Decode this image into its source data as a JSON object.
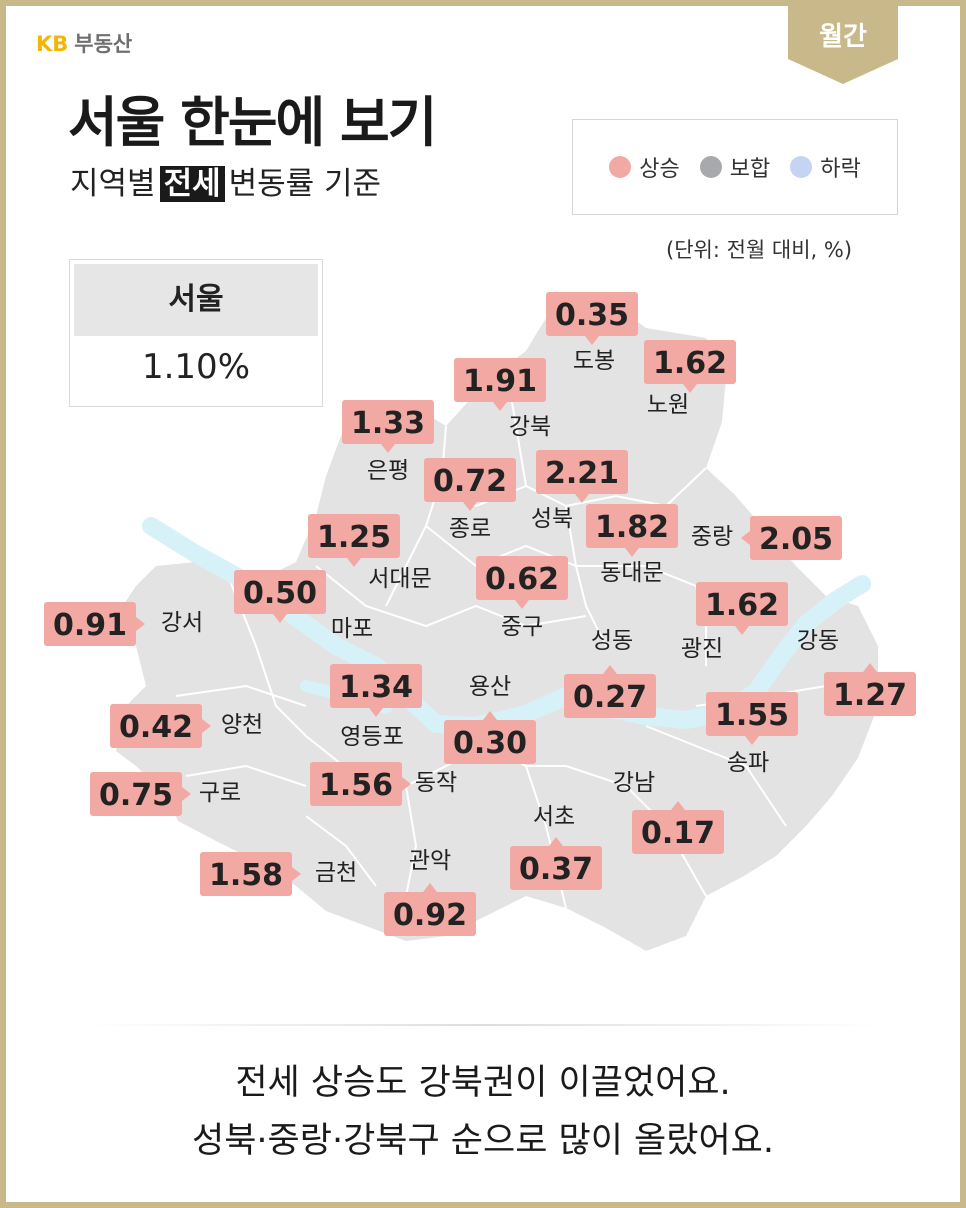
{
  "brand": {
    "kb": "KB",
    "name": "부동산"
  },
  "period": "월간",
  "title": "서울 한눈에 보기",
  "subtitle": {
    "before": "지역별",
    "highlight": "전세",
    "after": "변동률 기준"
  },
  "legend": [
    {
      "label": "상승",
      "color": "#f2a9a3"
    },
    {
      "label": "보합",
      "color": "#a7a9ac"
    },
    {
      "label": "하락",
      "color": "#c5d4f3"
    }
  ],
  "unit": "(단위: 전월 대비, %)",
  "summary": {
    "region": "서울",
    "value": "1.10%"
  },
  "colors": {
    "rise": "#f2a9a3",
    "map": "#e3e3e3",
    "river": "#d6f2f8",
    "accent": "#c9b88a"
  },
  "districts": [
    {
      "name": "도봉",
      "value": "0.35"
    },
    {
      "name": "노원",
      "value": "1.62"
    },
    {
      "name": "강북",
      "value": "1.91"
    },
    {
      "name": "은평",
      "value": "1.33"
    },
    {
      "name": "종로",
      "value": "0.72"
    },
    {
      "name": "성북",
      "value": "2.21"
    },
    {
      "name": "중랑",
      "value": "2.05"
    },
    {
      "name": "동대문",
      "value": "1.82"
    },
    {
      "name": "서대문",
      "value": "1.25"
    },
    {
      "name": "마포",
      "value": "0.50"
    },
    {
      "name": "중구",
      "value": "0.62"
    },
    {
      "name": "강서",
      "value": "0.91"
    },
    {
      "name": "광진",
      "value": "1.62"
    },
    {
      "name": "강동",
      "value": "1.27"
    },
    {
      "name": "성동",
      "value": "0.27"
    },
    {
      "name": "용산",
      "value": "0.30"
    },
    {
      "name": "영등포",
      "value": "1.34"
    },
    {
      "name": "양천",
      "value": "0.42"
    },
    {
      "name": "송파",
      "value": "1.55"
    },
    {
      "name": "동작",
      "value": "1.56"
    },
    {
      "name": "구로",
      "value": "0.75"
    },
    {
      "name": "강남",
      "value": "0.17"
    },
    {
      "name": "서초",
      "value": "0.37"
    },
    {
      "name": "금천",
      "value": "1.58"
    },
    {
      "name": "관악",
      "value": "0.92"
    }
  ],
  "footer": {
    "line1": "전세 상승도 강북권이 이끌었어요.",
    "line2": "성북·중랑·강북구 순으로 많이 올랐어요."
  }
}
